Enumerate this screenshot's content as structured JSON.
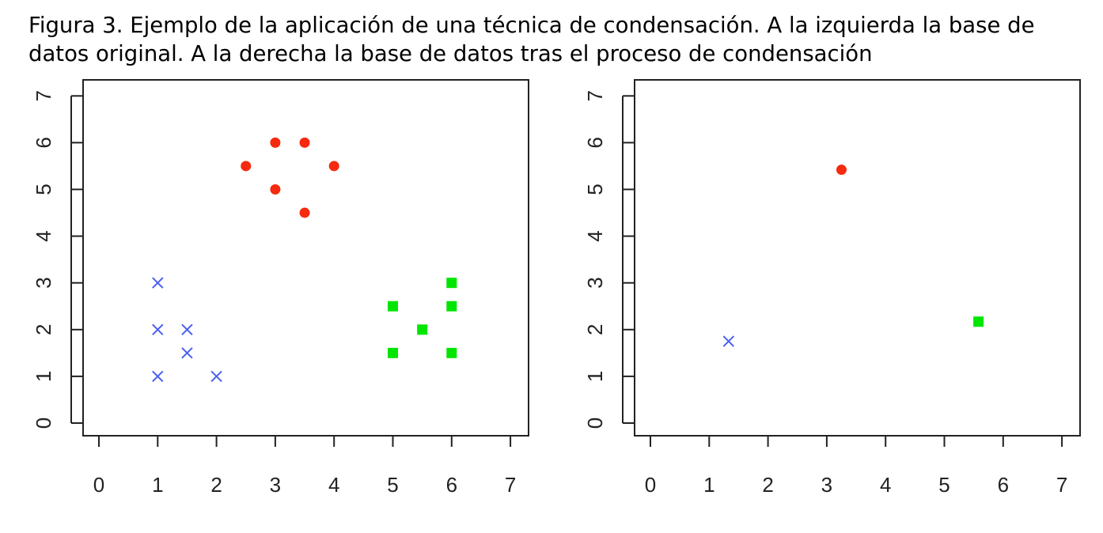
{
  "caption": {
    "line1": "Figura 3. Ejemplo de la aplicación de una técnica de condensación. A la izquierda la base de",
    "line2": "datos original. A la derecha la base de datos tras el proceso de condensación"
  },
  "colors": {
    "blue": "#4a5ff0",
    "red": "#f52a0f",
    "green": "#00e600",
    "axis": "#222222"
  },
  "chart_data": [
    {
      "type": "scatter",
      "title": "",
      "xlabel": "",
      "ylabel": "",
      "xlim": [
        0,
        7
      ],
      "ylim": [
        0,
        7
      ],
      "xticks": [
        "0",
        "1",
        "2",
        "3",
        "4",
        "5",
        "6",
        "7"
      ],
      "yticks": [
        "0",
        "1",
        "2",
        "3",
        "4",
        "5",
        "6",
        "7"
      ],
      "grid": false,
      "series": [
        {
          "marker": "x",
          "color": "#4a5ff0",
          "points": [
            [
              1,
              3
            ],
            [
              1,
              2
            ],
            [
              1.5,
              2
            ],
            [
              1.5,
              1.5
            ],
            [
              1,
              1
            ],
            [
              2,
              1
            ]
          ]
        },
        {
          "marker": "circle",
          "color": "#f52a0f",
          "points": [
            [
              3,
              6
            ],
            [
              3.5,
              6
            ],
            [
              2.5,
              5.5
            ],
            [
              4,
              5.5
            ],
            [
              3,
              5
            ],
            [
              3.5,
              4.5
            ]
          ]
        },
        {
          "marker": "square",
          "color": "#00e600",
          "points": [
            [
              6,
              3
            ],
            [
              5,
              2.5
            ],
            [
              6,
              2.5
            ],
            [
              5.5,
              2
            ],
            [
              5,
              1.5
            ],
            [
              6,
              1.5
            ]
          ]
        }
      ]
    },
    {
      "type": "scatter",
      "title": "",
      "xlabel": "",
      "ylabel": "",
      "xlim": [
        0,
        7
      ],
      "ylim": [
        0,
        7
      ],
      "xticks": [
        "0",
        "1",
        "2",
        "3",
        "4",
        "5",
        "6",
        "7"
      ],
      "yticks": [
        "0",
        "1",
        "2",
        "3",
        "4",
        "5",
        "6",
        "7"
      ],
      "grid": false,
      "series": [
        {
          "marker": "x",
          "color": "#4a5ff0",
          "points": [
            [
              1.33,
              1.75
            ]
          ]
        },
        {
          "marker": "circle",
          "color": "#f52a0f",
          "points": [
            [
              3.25,
              5.42
            ]
          ]
        },
        {
          "marker": "square",
          "color": "#00e600",
          "points": [
            [
              5.58,
              2.17
            ]
          ]
        }
      ]
    }
  ]
}
